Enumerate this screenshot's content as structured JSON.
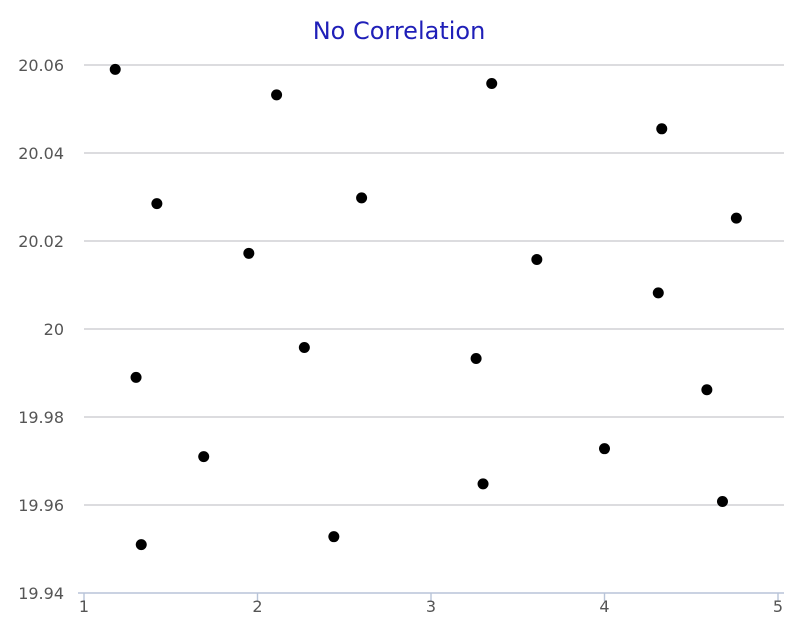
{
  "chart_data": {
    "type": "scatter",
    "title": "No Correlation",
    "xlabel": "",
    "ylabel": "",
    "xlim": [
      1,
      5
    ],
    "ylim": [
      19.94,
      20.06
    ],
    "x_ticks": [
      {
        "value": 1,
        "label": "1"
      },
      {
        "value": 2,
        "label": "2"
      },
      {
        "value": 3,
        "label": "3"
      },
      {
        "value": 4,
        "label": "4"
      },
      {
        "value": 5,
        "label": "5"
      }
    ],
    "y_ticks": [
      {
        "value": 19.94,
        "label": "19.94"
      },
      {
        "value": 19.96,
        "label": "19.96"
      },
      {
        "value": 19.98,
        "label": "19.98"
      },
      {
        "value": 20.0,
        "label": "20"
      },
      {
        "value": 20.02,
        "label": "20.02"
      },
      {
        "value": 20.04,
        "label": "20.04"
      },
      {
        "value": 20.06,
        "label": "20.06"
      }
    ],
    "grid": true,
    "legend": "none",
    "marker_color": "#000000",
    "title_color": "#1f1fb8",
    "series": [
      {
        "points": [
          {
            "x": 1.18,
            "y": 20.059
          },
          {
            "x": 1.3,
            "y": 19.989
          },
          {
            "x": 1.33,
            "y": 19.951
          },
          {
            "x": 1.42,
            "y": 20.0285
          },
          {
            "x": 1.69,
            "y": 19.971
          },
          {
            "x": 1.95,
            "y": 20.0172
          },
          {
            "x": 2.11,
            "y": 20.0532
          },
          {
            "x": 2.27,
            "y": 19.9958
          },
          {
            "x": 2.44,
            "y": 19.9528
          },
          {
            "x": 2.6,
            "y": 20.0298
          },
          {
            "x": 3.26,
            "y": 19.9933
          },
          {
            "x": 3.3,
            "y": 19.9648
          },
          {
            "x": 3.35,
            "y": 20.0558
          },
          {
            "x": 3.61,
            "y": 20.0158
          },
          {
            "x": 4.0,
            "y": 19.9728
          },
          {
            "x": 4.31,
            "y": 20.0082
          },
          {
            "x": 4.33,
            "y": 20.0455
          },
          {
            "x": 4.59,
            "y": 19.9862
          },
          {
            "x": 4.68,
            "y": 19.9608
          },
          {
            "x": 4.76,
            "y": 20.0252
          }
        ]
      }
    ]
  }
}
